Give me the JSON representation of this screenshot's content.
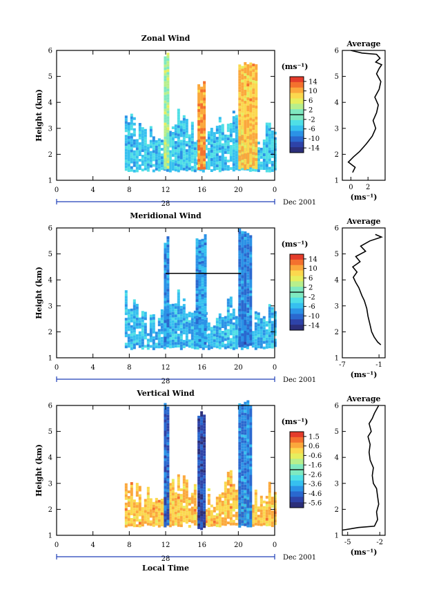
{
  "colors": {
    "jet_scale": [
      "#2c2f7a",
      "#2e43a8",
      "#2a68cf",
      "#2b92e6",
      "#36c0ef",
      "#4fdfe6",
      "#7fe9c0",
      "#b7ef8c",
      "#e6ee5e",
      "#fbd84e",
      "#fba83c",
      "#f4712e",
      "#e43c2b"
    ]
  },
  "shared": {
    "time_ticks": [
      "0",
      "4",
      "8",
      "12",
      "16",
      "20",
      "0"
    ],
    "day_label": "28",
    "month_label": "Dec 2001",
    "local_time_label": "Local Time",
    "ylabel": "Height (km)",
    "height_ticks": [
      "1",
      "2",
      "3",
      "4",
      "5",
      "6"
    ],
    "unit_label": "(ms⁻¹)"
  },
  "chart_data": [
    {
      "type": "heatmap",
      "title": "Zonal Wind",
      "xlabel": "",
      "ylabel": "Height (km)",
      "xlim": [
        0,
        24
      ],
      "ylim": [
        1,
        6
      ],
      "colorbar": {
        "ticks": [
          "14",
          "10",
          "6",
          "2",
          "-2",
          "-6",
          "-10",
          "-14"
        ],
        "range": [
          -14,
          14
        ]
      },
      "regions": [
        {
          "t_start": 7.5,
          "t_end": 24,
          "h_bottom": 1.4,
          "h_top": 3.5,
          "value": -4
        },
        {
          "t_start": 11.8,
          "t_end": 12.3,
          "h_bottom": 1.5,
          "h_top": 5.7,
          "value": 2
        },
        {
          "t_start": 15.5,
          "t_end": 16.3,
          "h_bottom": 1.5,
          "h_top": 4.6,
          "value": 10
        },
        {
          "t_start": 20.0,
          "t_end": 22.0,
          "h_bottom": 1.5,
          "h_top": 5.3,
          "value": 8
        }
      ],
      "average_profile": {
        "title": "Average",
        "xlabel": "(ms⁻¹)",
        "x_ticks": [
          "0",
          "2"
        ],
        "xlim": [
          -1,
          4
        ],
        "ylim": [
          1,
          6
        ],
        "x": [
          0.2,
          0.5,
          -0.3,
          0.3,
          1.0,
          1.8,
          2.5,
          2.9,
          2.6,
          3.0,
          3.2,
          2.8,
          3.3,
          3.5,
          3.0,
          3.3,
          3.6,
          2.9,
          3.4,
          3.0,
          1.3,
          0.0
        ],
        "y": [
          1.3,
          1.5,
          1.7,
          1.9,
          2.1,
          2.4,
          2.7,
          3.0,
          3.3,
          3.6,
          3.9,
          4.2,
          4.5,
          4.8,
          5.1,
          5.3,
          5.45,
          5.55,
          5.7,
          5.85,
          5.9,
          6.0
        ]
      }
    },
    {
      "type": "heatmap",
      "title": "Meridional Wind",
      "xlabel": "",
      "ylabel": "Height (km)",
      "xlim": [
        0,
        24
      ],
      "ylim": [
        1,
        6
      ],
      "colorbar": {
        "ticks": [
          "14",
          "10",
          "6",
          "2",
          "-2",
          "-6",
          "-10",
          "-14"
        ],
        "range": [
          -14,
          14
        ]
      },
      "regions": [
        {
          "t_start": 7.5,
          "t_end": 24,
          "h_bottom": 1.4,
          "h_top": 3.2,
          "value": -5
        },
        {
          "t_start": 11.8,
          "t_end": 12.3,
          "h_bottom": 1.5,
          "h_top": 5.4,
          "value": -7
        },
        {
          "t_start": 15.3,
          "t_end": 16.3,
          "h_bottom": 1.5,
          "h_top": 5.5,
          "value": -6
        },
        {
          "t_start": 20.0,
          "t_end": 21.5,
          "h_bottom": 1.5,
          "h_top": 5.7,
          "value": -8
        }
      ],
      "average_profile": {
        "title": "Average",
        "xlabel": "(ms⁻¹)",
        "x_ticks": [
          "-7",
          "-1"
        ],
        "xlim": [
          -7,
          0
        ],
        "x": [
          -0.7,
          -1.2,
          -1.8,
          -2.2,
          -2.5,
          -2.8,
          -3.0,
          -3.4,
          -3.8,
          -4.3,
          -4.8,
          -5.2,
          -4.6,
          -5.3,
          -4.1,
          -4.8,
          -3.2,
          -4.0,
          -2.5,
          -1.2,
          -0.6,
          -1.6
        ],
        "y": [
          1.5,
          1.6,
          1.8,
          2.0,
          2.3,
          2.6,
          2.9,
          3.2,
          3.4,
          3.7,
          3.9,
          4.1,
          4.3,
          4.5,
          4.7,
          4.9,
          5.1,
          5.3,
          5.5,
          5.6,
          5.65,
          5.75
        ]
      }
    },
    {
      "type": "heatmap",
      "title": "Vertical Wind",
      "xlabel": "Local Time",
      "ylabel": "Height (km)",
      "xlim": [
        0,
        24
      ],
      "ylim": [
        1,
        6
      ],
      "colorbar": {
        "ticks": [
          "1.5",
          "0.6",
          "-0.6",
          "-1.6",
          "-2.6",
          "-3.6",
          "-4.6",
          "-5.6"
        ],
        "range": [
          -5.6,
          1.5
        ]
      },
      "regions": [
        {
          "t_start": 7.5,
          "t_end": 24,
          "h_bottom": 1.4,
          "h_top": 3.2,
          "value": 0.0
        },
        {
          "t_start": 11.8,
          "t_end": 12.3,
          "h_bottom": 1.4,
          "h_top": 5.9,
          "value": -4.5
        },
        {
          "t_start": 15.5,
          "t_end": 16.3,
          "h_bottom": 1.3,
          "h_top": 5.6,
          "value": -5.0
        },
        {
          "t_start": 20.0,
          "t_end": 21.5,
          "h_bottom": 1.4,
          "h_top": 5.9,
          "value": -4.0
        }
      ],
      "average_profile": {
        "title": "Average",
        "xlabel": "(ms⁻¹)",
        "x_ticks": [
          "-5",
          "-2"
        ],
        "xlim": [
          -5.5,
          -1.5
        ],
        "x": [
          -5.8,
          -4.0,
          -2.5,
          -2.2,
          -2.3,
          -2.1,
          -2.2,
          -2.3,
          -2.6,
          -2.7,
          -2.6,
          -2.9,
          -3.0,
          -2.9,
          -3.1,
          -2.8,
          -3.0,
          -2.7,
          -2.5,
          -2.1
        ],
        "y": [
          1.2,
          1.3,
          1.35,
          1.6,
          1.9,
          2.2,
          2.5,
          2.8,
          3.0,
          3.3,
          3.6,
          3.9,
          4.2,
          4.5,
          4.8,
          5.0,
          5.3,
          5.5,
          5.7,
          6.0
        ]
      }
    }
  ]
}
